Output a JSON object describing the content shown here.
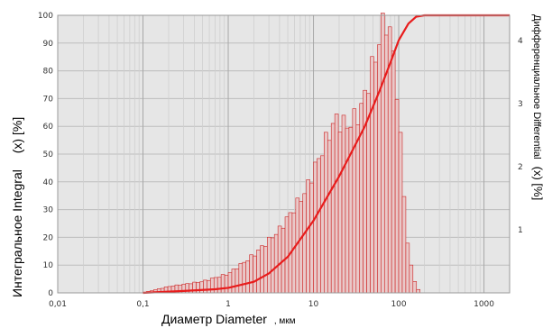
{
  "chart_data": {
    "type": "bar",
    "xscale": "log",
    "xlim": [
      0.01,
      2000
    ],
    "x_ticks": [
      "0,01",
      "0,1",
      "1",
      "10",
      "100",
      "1000"
    ],
    "x_tick_values": [
      0.01,
      0.1,
      1,
      10,
      100,
      1000
    ],
    "ylim": [
      0,
      100
    ],
    "y_ticks": [
      "0",
      "10",
      "20",
      "30",
      "40",
      "50",
      "60",
      "70",
      "80",
      "90",
      "100"
    ],
    "y2lim": [
      0,
      4.4
    ],
    "y2_ticks": [
      "1",
      "2",
      "3",
      "4"
    ],
    "y2_tick_values": [
      1,
      2,
      3,
      4
    ],
    "ylabel_main": "Интегральное Integral",
    "ylabel_var": "(x) [%]",
    "y2label_main": "Дифференциальное Differential",
    "y2label_var": "(x) [%]",
    "xlabel": "Диаметр Diameter",
    "xunit": ", мкм",
    "grid": true,
    "colors": {
      "bars": "#cc2222",
      "curve": "#e81c1c",
      "background": "#e6e6e6",
      "grid": "#bdbdbd"
    },
    "differential_peaks": [
      {
        "x": 0.1,
        "y": 0.0
      },
      {
        "x": 0.2,
        "y": 0.1
      },
      {
        "x": 0.5,
        "y": 0.18
      },
      {
        "x": 1.0,
        "y": 0.3
      },
      {
        "x": 2.0,
        "y": 0.6
      },
      {
        "x": 4.0,
        "y": 1.0
      },
      {
        "x": 8.0,
        "y": 1.6
      },
      {
        "x": 13.0,
        "y": 2.3
      },
      {
        "x": 18.0,
        "y": 2.75
      },
      {
        "x": 25.0,
        "y": 2.65
      },
      {
        "x": 35.0,
        "y": 2.85
      },
      {
        "x": 50.0,
        "y": 3.6
      },
      {
        "x": 70.0,
        "y": 4.4
      },
      {
        "x": 90.0,
        "y": 3.7
      },
      {
        "x": 110.0,
        "y": 2.0
      },
      {
        "x": 130.0,
        "y": 0.6
      },
      {
        "x": 160.0,
        "y": 0.1
      },
      {
        "x": 180.0,
        "y": 0.0
      }
    ],
    "integral": [
      {
        "x": 0.1,
        "y": 0
      },
      {
        "x": 0.3,
        "y": 0.7
      },
      {
        "x": 0.7,
        "y": 1.3
      },
      {
        "x": 1,
        "y": 1.8
      },
      {
        "x": 2,
        "y": 4
      },
      {
        "x": 3,
        "y": 7
      },
      {
        "x": 5,
        "y": 13
      },
      {
        "x": 10,
        "y": 26
      },
      {
        "x": 20,
        "y": 42
      },
      {
        "x": 40,
        "y": 60
      },
      {
        "x": 60,
        "y": 73
      },
      {
        "x": 80,
        "y": 83
      },
      {
        "x": 100,
        "y": 91
      },
      {
        "x": 130,
        "y": 97
      },
      {
        "x": 160,
        "y": 99.5
      },
      {
        "x": 200,
        "y": 100
      },
      {
        "x": 2000,
        "y": 100
      }
    ]
  }
}
